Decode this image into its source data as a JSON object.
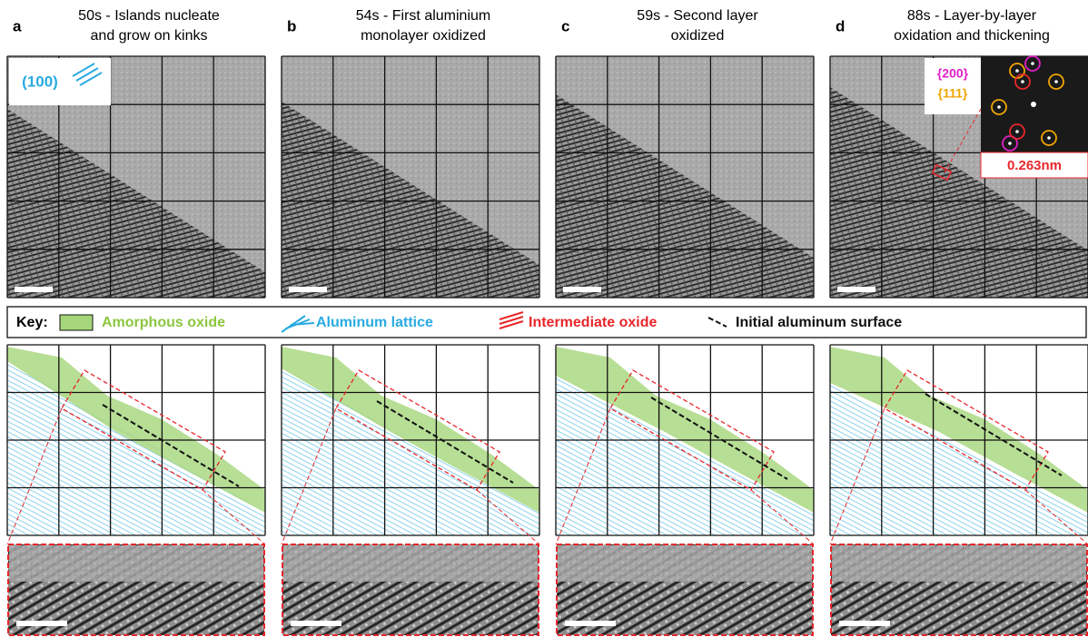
{
  "panels": [
    {
      "letter": "a",
      "title": [
        "50s - Islands nucleate",
        "and grow on kinks"
      ]
    },
    {
      "letter": "b",
      "title": [
        "54s -  First aluminium",
        "monolayer oxidized"
      ]
    },
    {
      "letter": "c",
      "title": [
        "59s - Second layer",
        "oxidized"
      ]
    },
    {
      "letter": "d",
      "title": [
        "88s - Layer-by-layer",
        "oxidation and thickening"
      ]
    }
  ],
  "inset_a": {
    "label": "(100)"
  },
  "inset_d": {
    "labels": [
      "{200}",
      "{111}"
    ],
    "distance": "0.263nm"
  },
  "key": {
    "title": "Key:",
    "items": [
      "Amorphous oxide",
      "Aluminum lattice",
      "Intermediate oxide",
      "Initial aluminum surface"
    ]
  }
}
